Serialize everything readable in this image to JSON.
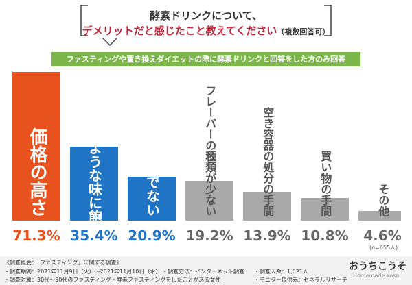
{
  "header": {
    "title_line1": "酵素ドリンクについて、",
    "title_line2": "デメリットだと感じたこと教えてください",
    "title_note": "（複数回答可）",
    "banner": "ファスティングや置き換えダイエットの際に酵素ドリンクと回答をした方のみ回答"
  },
  "chart_data": {
    "type": "bar",
    "categories": [
      "価格の高さ",
      "同じような味に飽きてくる",
      "味が好みでない",
      "フレーバーの種類が少ない",
      "空き容器の処分の手間",
      "買い物の手間",
      "その他"
    ],
    "values": [
      71.3,
      35.4,
      20.9,
      19.2,
      13.9,
      10.8,
      4.6
    ],
    "value_labels": [
      "71.3%",
      "35.4%",
      "20.9%",
      "19.2%",
      "13.9%",
      "10.8%",
      "4.6%"
    ],
    "colors": [
      "#e8521f",
      "#1f74c6",
      "#1f74c6",
      "#a9a9a9",
      "#a9a9a9",
      "#a9a9a9",
      "#a9a9a9"
    ],
    "note": "(n=655人)"
  },
  "footer": {
    "survey_title": "《調査概要：「ファスティング」に関する調査》",
    "period": "・調査期間：2021年11月9日（火）〜2021年11月10日（水）",
    "method": "・調査方法：インターネット調査",
    "count": "・調査人数：1,021人",
    "target": "・調査対象：30代〜50代のファスティング・酵素ファスティングをしたことがある女性",
    "provider": "・モニター提供元：ゼネラルリサーチ",
    "logo": "おうちこうそ",
    "logo_sub": "Homemade koso"
  }
}
